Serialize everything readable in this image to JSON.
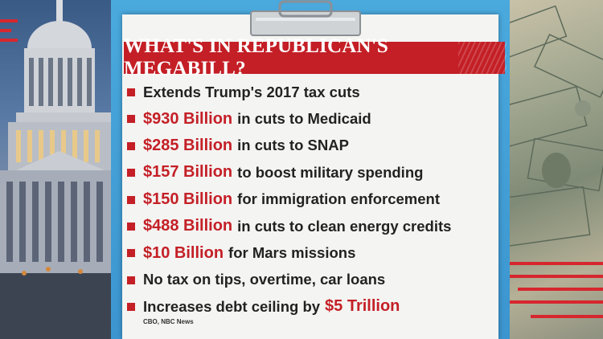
{
  "title": "WHAT'S IN REPUBLICAN'S MEGABILL?",
  "items": [
    {
      "pre": "",
      "highlight": "",
      "text": "Extends Trump's 2017 tax cuts",
      "post": ""
    },
    {
      "pre": "",
      "highlight": "$930 Billion",
      "text": "in cuts to Medicaid",
      "post": ""
    },
    {
      "pre": "",
      "highlight": "$285 Billion",
      "text": "in cuts to SNAP",
      "post": ""
    },
    {
      "pre": "",
      "highlight": "$157 Billion",
      "text": "to boost military spending",
      "post": ""
    },
    {
      "pre": "",
      "highlight": "$150 Billion",
      "text": "for immigration enforcement",
      "post": ""
    },
    {
      "pre": "",
      "highlight": "$488 Billion",
      "text": "in cuts to clean energy credits",
      "post": ""
    },
    {
      "pre": "",
      "highlight": "$10 Billion",
      "text": "for Mars missions",
      "post": ""
    },
    {
      "pre": "",
      "highlight": "",
      "text": "No tax on tips, overtime, car loans",
      "post": ""
    },
    {
      "pre": "",
      "highlight": "",
      "text": "Increases debt ceiling by",
      "post": "$5 Trillion"
    }
  ],
  "source": "CBO, NBC News",
  "colors": {
    "accent_red": "#c41f26",
    "board_blue": "#3f9ad3",
    "paper": "#f4f4f2"
  }
}
